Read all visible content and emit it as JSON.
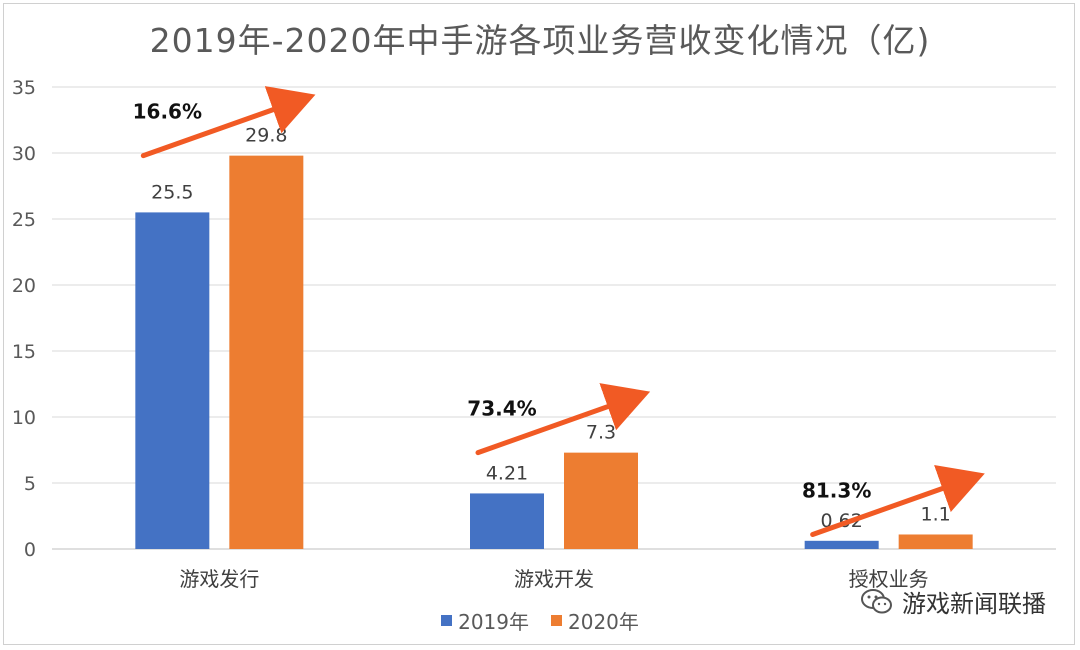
{
  "chart_data": {
    "type": "bar",
    "title": "2019年-2020年中手游各项业务营收变化情况（亿)",
    "categories": [
      "游戏发行",
      "游戏开发",
      "授权业务"
    ],
    "series": [
      {
        "name": "2019年",
        "values": [
          25.5,
          4.21,
          0.62
        ],
        "labels": [
          "25.5",
          "4.21",
          "0.62"
        ],
        "color": "#4472C4"
      },
      {
        "name": "2020年",
        "values": [
          29.8,
          7.3,
          1.1
        ],
        "labels": [
          "29.8",
          "7.3",
          "1.1"
        ],
        "color": "#ED7D31"
      }
    ],
    "growth_annotations": [
      "16.6%",
      "73.4%",
      "81.3%"
    ],
    "annotation_arrow_color": "#F15A24",
    "ylim": [
      0,
      35
    ],
    "yticks": [
      "0",
      "5",
      "10",
      "15",
      "20",
      "25",
      "30",
      "35"
    ],
    "grid": true,
    "legend_position": "bottom"
  },
  "watermark": {
    "text": "游戏新闻联播",
    "icon": "wechat-icon"
  }
}
